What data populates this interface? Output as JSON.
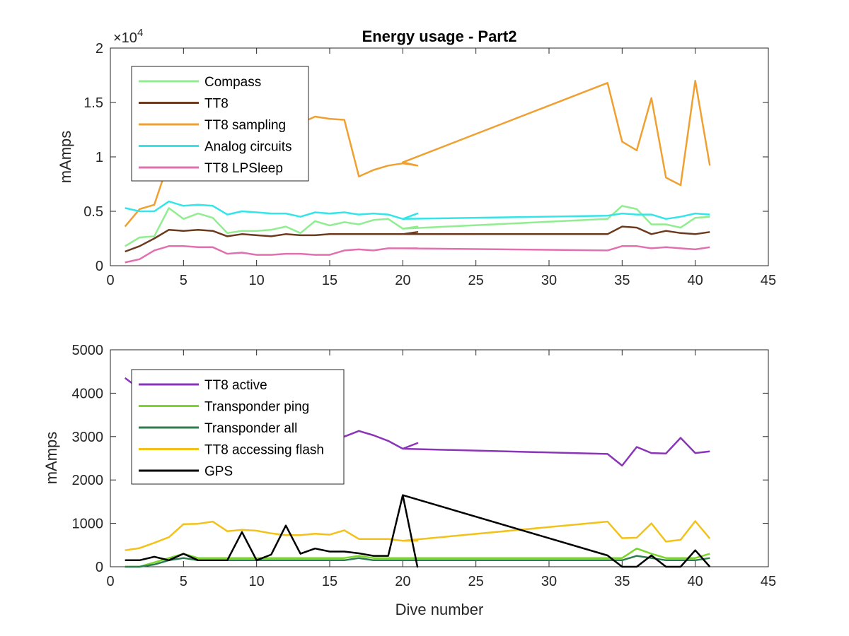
{
  "chart_data": [
    {
      "type": "line",
      "title": "Energy usage - Part2",
      "xlabel": "",
      "ylabel": "mAmps",
      "xlim": [
        0,
        45
      ],
      "ylim": [
        0,
        20000
      ],
      "xticks": [
        0,
        5,
        10,
        15,
        20,
        25,
        30,
        35,
        40,
        45
      ],
      "yticks": [
        0,
        5000,
        10000,
        15000,
        20000
      ],
      "yticklabels": [
        "0",
        "0.5",
        "1",
        "1.5",
        "2"
      ],
      "exponent_label": "×10",
      "exponent_power": "4",
      "legend_position": "top-left",
      "x": [
        1,
        2,
        3,
        4,
        5,
        6,
        7,
        8,
        9,
        10,
        11,
        12,
        13,
        14,
        15,
        16,
        17,
        18,
        19,
        20,
        21,
        20,
        34,
        35,
        36,
        37,
        38,
        39,
        40,
        41
      ],
      "series": [
        {
          "name": "Compass",
          "color": "#90ee90",
          "values": [
            1800,
            2600,
            2700,
            5300,
            4300,
            4800,
            4400,
            3000,
            3200,
            3200,
            3300,
            3600,
            3000,
            4100,
            3700,
            4000,
            3800,
            4200,
            4300,
            3400,
            3600,
            3400,
            4300,
            5500,
            5200,
            3800,
            3800,
            3500,
            4400,
            4500
          ]
        },
        {
          "name": "TT8",
          "color": "#6b3a1f",
          "values": [
            1300,
            1800,
            2500,
            3300,
            3200,
            3300,
            3200,
            2700,
            2900,
            2800,
            2700,
            2900,
            2800,
            2800,
            2900,
            2900,
            2900,
            2900,
            2900,
            2900,
            3100,
            2900,
            2900,
            3600,
            3500,
            2900,
            3200,
            3000,
            2900,
            3100
          ]
        },
        {
          "name": "TT8 sampling",
          "color": "#f0a030",
          "values": [
            3600,
            5200,
            5600,
            9600,
            10700,
            11000,
            11300,
            11500,
            11800,
            11900,
            12100,
            12400,
            13100,
            13700,
            13500,
            13400,
            8200,
            8800,
            9200,
            9400,
            9200,
            9500,
            16800,
            11400,
            10600,
            15400,
            8100,
            7400,
            17000,
            9200
          ]
        },
        {
          "name": "Analog circuits",
          "color": "#33e5e8",
          "values": [
            5300,
            5000,
            5000,
            5900,
            5500,
            5600,
            5500,
            4700,
            5000,
            4900,
            4800,
            4800,
            4500,
            4900,
            4800,
            4900,
            4700,
            4800,
            4700,
            4300,
            4800,
            4300,
            4600,
            4800,
            4700,
            4700,
            4300,
            4500,
            4800,
            4700
          ]
        },
        {
          "name": "TT8 LPSleep",
          "color": "#e070b0",
          "values": [
            300,
            600,
            1400,
            1800,
            1800,
            1700,
            1700,
            1100,
            1200,
            1000,
            1000,
            1100,
            1100,
            1000,
            1000,
            1400,
            1500,
            1400,
            1600,
            1600,
            1600,
            1600,
            1400,
            1800,
            1800,
            1600,
            1700,
            1600,
            1500,
            1700
          ]
        }
      ]
    },
    {
      "type": "line",
      "title": "",
      "xlabel": "Dive number",
      "ylabel": "mAmps",
      "xlim": [
        0,
        45
      ],
      "ylim": [
        0,
        5000
      ],
      "xticks": [
        0,
        5,
        10,
        15,
        20,
        25,
        30,
        35,
        40,
        45
      ],
      "yticks": [
        0,
        1000,
        2000,
        3000,
        4000,
        5000
      ],
      "legend_position": "top-left",
      "x": [
        1,
        2,
        3,
        4,
        5,
        6,
        7,
        8,
        9,
        10,
        11,
        12,
        13,
        14,
        15,
        16,
        17,
        18,
        19,
        20,
        21,
        20,
        34,
        35,
        36,
        37,
        38,
        39,
        40,
        41
      ],
      "series": [
        {
          "name": "TT8 active",
          "color": "#8a35b8",
          "values": [
            4350,
            4100,
            4000,
            3900,
            3800,
            3700,
            3600,
            3500,
            3400,
            3300,
            3250,
            3200,
            3100,
            3050,
            3000,
            3000,
            3130,
            3030,
            2900,
            2720,
            2850,
            2720,
            2600,
            2330,
            2760,
            2620,
            2610,
            2970,
            2620,
            2660
          ]
        },
        {
          "name": "Transponder ping",
          "color": "#7ad629",
          "values": [
            0,
            0,
            100,
            200,
            300,
            200,
            200,
            200,
            200,
            200,
            200,
            200,
            200,
            200,
            200,
            200,
            250,
            200,
            200,
            200,
            200,
            200,
            200,
            200,
            420,
            300,
            200,
            200,
            200,
            300
          ]
        },
        {
          "name": "Transponder all",
          "color": "#2e7d4f",
          "values": [
            0,
            0,
            50,
            150,
            200,
            150,
            150,
            150,
            150,
            150,
            150,
            150,
            150,
            150,
            150,
            150,
            200,
            150,
            150,
            150,
            150,
            150,
            150,
            150,
            250,
            200,
            150,
            150,
            150,
            200
          ]
        },
        {
          "name": "TT8 accessing flash",
          "color": "#f2c218",
          "values": [
            380,
            430,
            550,
            680,
            980,
            990,
            1040,
            820,
            850,
            830,
            770,
            730,
            730,
            760,
            740,
            840,
            640,
            640,
            640,
            600,
            600,
            600,
            1040,
            660,
            670,
            1000,
            580,
            620,
            1050,
            650
          ]
        },
        {
          "name": "GPS",
          "color": "#000000",
          "values": [
            150,
            150,
            230,
            150,
            300,
            150,
            150,
            150,
            800,
            150,
            280,
            950,
            300,
            420,
            350,
            350,
            310,
            250,
            250,
            1650,
            0,
            1650,
            260,
            0,
            0,
            260,
            0,
            0,
            380,
            0
          ]
        }
      ]
    }
  ]
}
